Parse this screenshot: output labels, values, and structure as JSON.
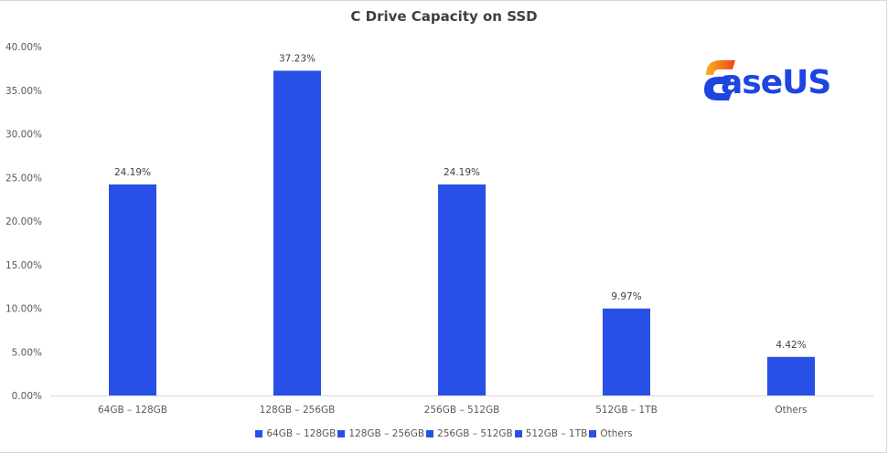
{
  "chart_data": {
    "type": "bar",
    "title": "C Drive Capacity on SSD",
    "categories": [
      "64GB – 128GB",
      "128GB – 256GB",
      "256GB – 512GB",
      "512GB – 1TB",
      "Others"
    ],
    "values": [
      24.19,
      37.23,
      24.19,
      9.97,
      4.42
    ],
    "data_labels": [
      "24.19%",
      "37.23%",
      "24.19%",
      "9.97%",
      "4.42%"
    ],
    "xlabel": "",
    "ylabel": "",
    "ylim": [
      0,
      40
    ],
    "yticks": [
      0,
      5,
      10,
      15,
      20,
      25,
      30,
      35,
      40
    ],
    "ytick_labels": [
      "0.00%",
      "5.00%",
      "10.00%",
      "15.00%",
      "20.00%",
      "25.00%",
      "30.00%",
      "35.00%",
      "40.00%"
    ],
    "grid": false,
    "legend": {
      "placement": "bottom",
      "entries": [
        "64GB – 128GB",
        "128GB – 256GB",
        "256GB – 512GB",
        "512GB – 1TB",
        "Others"
      ]
    },
    "colors": {
      "bar": "#2850e6",
      "axis": "#d9d9d9"
    }
  },
  "logo": {
    "text": "aseUS",
    "brand": "EaseUS",
    "primary_color": "#1f45e0",
    "accent_color": "#f25a1f"
  }
}
